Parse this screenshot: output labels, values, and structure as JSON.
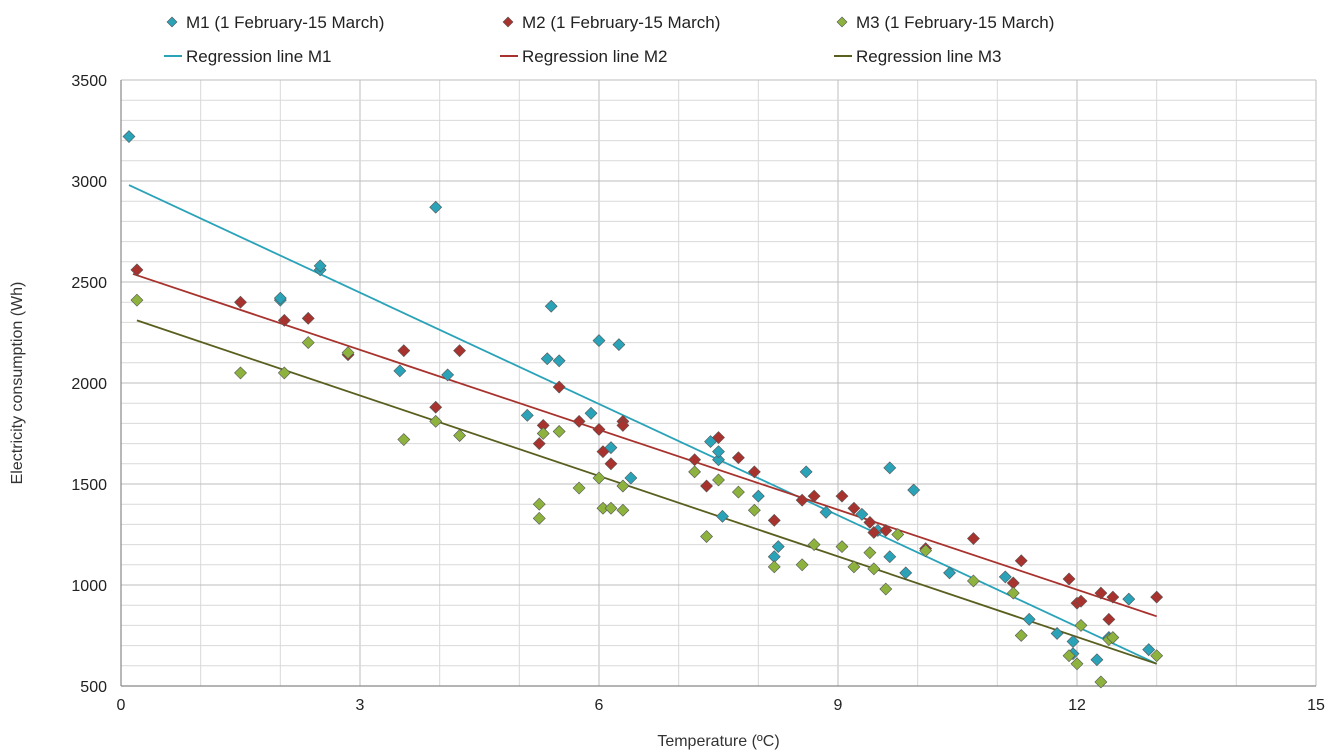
{
  "chart_data": {
    "type": "scatter",
    "title": "",
    "xlabel": "Temperature (ºC)",
    "ylabel": "Electricity consumption (Wh)",
    "xlim": [
      0,
      15
    ],
    "ylim": [
      500,
      3500
    ],
    "xticks": [
      0,
      3,
      6,
      9,
      12,
      15
    ],
    "yticks": [
      500,
      1000,
      1500,
      2000,
      2500,
      3000,
      3500
    ],
    "grid": true,
    "legend_position": "top",
    "series": [
      {
        "name": "M1 (1 February-15 March)",
        "color": "#2aa3b9",
        "marker": "diamond",
        "points": [
          [
            0.1,
            3220
          ],
          [
            2.0,
            2410
          ],
          [
            2.0,
            2420
          ],
          [
            2.5,
            2560
          ],
          [
            2.5,
            2580
          ],
          [
            3.5,
            2060
          ],
          [
            3.95,
            2870
          ],
          [
            4.1,
            2040
          ],
          [
            5.1,
            1840
          ],
          [
            5.35,
            2120
          ],
          [
            5.4,
            2380
          ],
          [
            5.5,
            2110
          ],
          [
            5.9,
            1850
          ],
          [
            6.0,
            2210
          ],
          [
            6.15,
            1680
          ],
          [
            6.25,
            2190
          ],
          [
            6.4,
            1530
          ],
          [
            7.4,
            1710
          ],
          [
            7.5,
            1620
          ],
          [
            7.55,
            1340
          ],
          [
            7.5,
            1660
          ],
          [
            8.0,
            1440
          ],
          [
            8.2,
            1140
          ],
          [
            8.25,
            1190
          ],
          [
            8.6,
            1560
          ],
          [
            8.85,
            1360
          ],
          [
            9.3,
            1350
          ],
          [
            9.5,
            1270
          ],
          [
            9.65,
            1580
          ],
          [
            9.65,
            1140
          ],
          [
            9.85,
            1060
          ],
          [
            9.95,
            1470
          ],
          [
            10.4,
            1060
          ],
          [
            11.1,
            1040
          ],
          [
            11.4,
            830
          ],
          [
            11.75,
            760
          ],
          [
            11.95,
            660
          ],
          [
            11.95,
            720
          ],
          [
            12.25,
            630
          ],
          [
            12.4,
            740
          ],
          [
            12.65,
            930
          ],
          [
            12.9,
            680
          ]
        ]
      },
      {
        "name": "M2 (1 February-15 March)",
        "color": "#a8332e",
        "marker": "diamond",
        "points": [
          [
            0.2,
            2560
          ],
          [
            1.5,
            2400
          ],
          [
            2.05,
            2310
          ],
          [
            2.35,
            2320
          ],
          [
            2.85,
            2140
          ],
          [
            3.55,
            2160
          ],
          [
            3.95,
            1880
          ],
          [
            4.25,
            2160
          ],
          [
            5.25,
            1700
          ],
          [
            5.3,
            1790
          ],
          [
            5.5,
            1980
          ],
          [
            5.75,
            1810
          ],
          [
            6.0,
            1770
          ],
          [
            6.05,
            1660
          ],
          [
            6.15,
            1600
          ],
          [
            6.3,
            1810
          ],
          [
            6.3,
            1790
          ],
          [
            7.2,
            1620
          ],
          [
            7.35,
            1490
          ],
          [
            7.5,
            1730
          ],
          [
            7.75,
            1630
          ],
          [
            7.95,
            1560
          ],
          [
            8.2,
            1320
          ],
          [
            8.55,
            1420
          ],
          [
            8.7,
            1440
          ],
          [
            9.05,
            1440
          ],
          [
            9.2,
            1380
          ],
          [
            9.4,
            1310
          ],
          [
            9.45,
            1260
          ],
          [
            9.6,
            1270
          ],
          [
            10.1,
            1180
          ],
          [
            10.7,
            1230
          ],
          [
            11.2,
            1010
          ],
          [
            11.3,
            1120
          ],
          [
            11.9,
            1030
          ],
          [
            12.0,
            910
          ],
          [
            12.05,
            920
          ],
          [
            12.3,
            960
          ],
          [
            12.4,
            830
          ],
          [
            12.45,
            940
          ],
          [
            13.0,
            940
          ]
        ]
      },
      {
        "name": "M3 (1 February-15 March)",
        "color": "#8db33e",
        "marker": "diamond",
        "points": [
          [
            0.2,
            2410
          ],
          [
            1.5,
            2050
          ],
          [
            2.05,
            2050
          ],
          [
            2.35,
            2200
          ],
          [
            2.85,
            2150
          ],
          [
            3.55,
            1720
          ],
          [
            3.95,
            1810
          ],
          [
            4.25,
            1740
          ],
          [
            5.25,
            1400
          ],
          [
            5.25,
            1330
          ],
          [
            5.3,
            1750
          ],
          [
            5.5,
            1760
          ],
          [
            5.75,
            1480
          ],
          [
            6.0,
            1530
          ],
          [
            6.05,
            1380
          ],
          [
            6.15,
            1380
          ],
          [
            6.3,
            1490
          ],
          [
            6.3,
            1370
          ],
          [
            7.2,
            1560
          ],
          [
            7.35,
            1240
          ],
          [
            7.5,
            1520
          ],
          [
            7.75,
            1460
          ],
          [
            7.95,
            1370
          ],
          [
            8.2,
            1090
          ],
          [
            8.55,
            1100
          ],
          [
            8.7,
            1200
          ],
          [
            9.05,
            1190
          ],
          [
            9.2,
            1090
          ],
          [
            9.4,
            1160
          ],
          [
            9.45,
            1080
          ],
          [
            9.6,
            980
          ],
          [
            9.75,
            1250
          ],
          [
            10.1,
            1170
          ],
          [
            10.7,
            1020
          ],
          [
            11.2,
            960
          ],
          [
            11.3,
            750
          ],
          [
            11.9,
            650
          ],
          [
            12.0,
            610
          ],
          [
            12.05,
            800
          ],
          [
            12.3,
            520
          ],
          [
            12.4,
            730
          ],
          [
            12.45,
            740
          ],
          [
            13.0,
            650
          ]
        ]
      }
    ],
    "regression_lines": [
      {
        "name": "Regression line M1",
        "color": "#2aa3b9",
        "from": [
          0.1,
          2980
        ],
        "to": [
          13.0,
          610
        ]
      },
      {
        "name": "Regression line M2",
        "color": "#a8332e",
        "from": [
          0.15,
          2540
        ],
        "to": [
          13.0,
          845
        ]
      },
      {
        "name": "Regression line M3",
        "color": "#5a5f1f",
        "from": [
          0.2,
          2310
        ],
        "to": [
          13.0,
          610
        ]
      }
    ]
  }
}
